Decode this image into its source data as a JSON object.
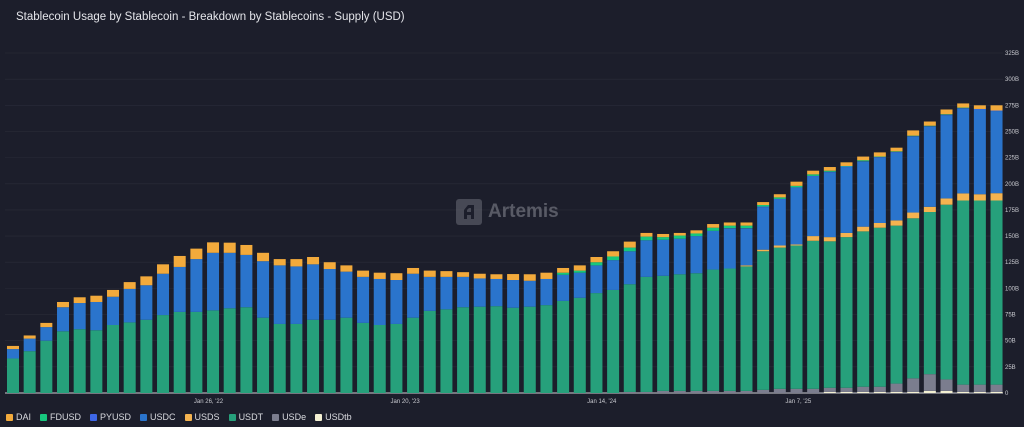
{
  "title": "Stablecoin Usage by Stablecoin - Breakdown by Stablecoins - Supply (USD)",
  "watermark": "Artemis",
  "chart_data": {
    "type": "bar",
    "stacked": true,
    "title": "Stablecoin Usage by Stablecoin - Breakdown by Stablecoins - Supply (USD)",
    "xlabel": "",
    "ylabel": "",
    "unit": "B USD",
    "ylim": [
      0,
      325
    ],
    "grid": true,
    "legend_position": "bottom-left",
    "y_ticks": [
      "0",
      "25B",
      "50B",
      "75B",
      "100B",
      "125B",
      "150B",
      "175B",
      "200B",
      "225B",
      "250B",
      "275B",
      "300B",
      "325B"
    ],
    "x_ticks": [
      "Jan 26, '22",
      "Jan 20, '23",
      "Jan 14, '24",
      "Jan 7, '25"
    ],
    "x_tick_dates": [
      "2022-01-26",
      "2023-01-20",
      "2024-01-14",
      "2025-01-07"
    ],
    "series": [
      {
        "name": "USDtb",
        "color": "#f3f0d2",
        "values": [
          0,
          0,
          0,
          0,
          0,
          0,
          0,
          0,
          0,
          0,
          0,
          0,
          0,
          0,
          0,
          0,
          0,
          0,
          0,
          0,
          0,
          0,
          0,
          0,
          0,
          0,
          0,
          0,
          0,
          0,
          0,
          0,
          0,
          0,
          0,
          0,
          0,
          0,
          0,
          0,
          0,
          0,
          0,
          0,
          0,
          0,
          0,
          0,
          0,
          1,
          1,
          1,
          1,
          1,
          1,
          2,
          2,
          1,
          1,
          1
        ]
      },
      {
        "name": "USDe",
        "color": "#7b7d8e",
        "values": [
          0,
          0,
          0,
          0,
          0,
          0,
          0,
          0,
          0,
          0,
          0,
          0,
          0,
          0,
          0,
          0,
          0,
          0,
          0,
          0,
          0,
          0,
          0,
          0,
          0,
          0,
          0,
          0,
          0,
          0,
          0,
          0,
          0,
          0,
          0,
          0,
          0,
          1,
          1,
          2,
          2,
          2,
          2,
          2,
          2,
          3,
          4,
          4,
          4,
          4,
          4,
          5,
          5,
          8,
          13,
          16,
          11,
          7,
          7,
          7
        ]
      },
      {
        "name": "USDT",
        "color": "#26a07b",
        "values": [
          33,
          40,
          50,
          59,
          61,
          60,
          65,
          67.5,
          70,
          74.5,
          77.5,
          77.5,
          79,
          81,
          82,
          72,
          66,
          66,
          70,
          70,
          72,
          67,
          65,
          66,
          72,
          78.5,
          80,
          82,
          82.5,
          83,
          81.5,
          82.5,
          84,
          88,
          91,
          95.5,
          98.5,
          103,
          110,
          110,
          111.5,
          112.5,
          116,
          117,
          119,
          132.5,
          135,
          137,
          141.5,
          140,
          144,
          148.5,
          152,
          151,
          153,
          155,
          167,
          176,
          176,
          176
        ]
      },
      {
        "name": "USDS",
        "color": "#f4b350",
        "values": [
          0,
          0,
          0,
          0,
          0,
          0,
          0,
          0,
          0,
          0,
          0,
          0,
          0,
          0,
          0,
          0,
          0,
          0,
          0,
          0,
          0,
          0,
          0,
          0,
          0,
          0,
          0,
          0,
          0,
          0,
          0,
          0,
          0,
          0,
          0,
          0,
          0,
          0,
          0,
          0,
          0,
          0,
          0,
          0,
          1,
          1.5,
          2,
          1,
          4.5,
          4,
          4,
          4.5,
          4.5,
          5,
          5.5,
          5,
          6,
          6.8,
          6,
          7
        ]
      },
      {
        "name": "USDC",
        "color": "#2a74cc",
        "values": [
          9,
          12,
          13,
          23,
          25,
          27,
          27,
          32,
          33,
          39.5,
          43,
          50.5,
          55,
          53,
          50,
          54,
          56,
          55,
          53,
          48.5,
          44,
          44,
          44,
          42,
          42,
          32.5,
          31,
          29,
          27,
          26,
          26.5,
          24.8,
          25,
          25,
          24,
          26.5,
          28.5,
          31.5,
          35,
          34.5,
          34,
          35.5,
          37,
          38,
          35,
          40.7,
          44,
          54,
          57,
          62,
          63,
          62,
          62.5,
          65,
          72.5,
          76.5,
          79.5,
          81,
          81,
          78.5
        ]
      },
      {
        "name": "PYUSD",
        "color": "#3d66e6",
        "values": [
          0,
          0,
          0,
          0,
          0,
          0,
          0,
          0,
          0,
          0,
          0,
          0,
          0,
          0,
          0,
          0,
          0,
          0,
          0,
          0,
          0,
          0,
          0,
          0,
          0,
          0,
          0,
          0,
          0,
          0,
          0,
          0,
          0,
          0,
          0,
          0,
          0,
          0,
          0,
          0,
          0,
          0,
          0,
          0.5,
          0.5,
          0.5,
          0.5,
          0.5,
          0.5,
          0.5,
          0.5,
          0.5,
          0.5,
          0.5,
          0.5,
          0.5,
          0.5,
          0.5,
          0.5,
          0.5
        ]
      },
      {
        "name": "FDUSD",
        "color": "#17c77e",
        "values": [
          0,
          0,
          0,
          0,
          0,
          0,
          0,
          0,
          0,
          0,
          0,
          0,
          0,
          0,
          0,
          0,
          0,
          0,
          0,
          0,
          0,
          0,
          0,
          0,
          0,
          0,
          0,
          0,
          0,
          0,
          0,
          0,
          0,
          2,
          2,
          3,
          3.5,
          3.5,
          3.5,
          2.5,
          3,
          2.5,
          3,
          2.5,
          2.5,
          1.5,
          1.5,
          1.5,
          1.5,
          1,
          0.5,
          1,
          0.5,
          0.5,
          0.5,
          0.5,
          0.5,
          0.5,
          0,
          0
        ]
      },
      {
        "name": "DAI",
        "color": "#f2aa3c",
        "values": [
          3,
          3,
          4,
          5,
          5.5,
          6,
          6.5,
          6.5,
          8.5,
          9,
          10.5,
          10,
          10,
          9.7,
          9.5,
          8,
          6,
          7,
          7,
          6.5,
          6,
          6,
          6,
          6.5,
          5.5,
          6,
          5.5,
          4.5,
          4.5,
          4.5,
          5.7,
          6.2,
          6,
          4.5,
          5,
          5,
          5,
          5.7,
          3.5,
          3,
          2.5,
          3,
          3.5,
          3,
          3,
          2.8,
          3,
          4,
          3.5,
          3.5,
          3.5,
          3.5,
          4,
          3.5,
          5,
          4,
          4.5,
          4,
          3.5,
          5
        ]
      }
    ],
    "legend": [
      "DAI",
      "FDUSD",
      "PYUSD",
      "USDC",
      "USDS",
      "USDT",
      "USDe",
      "USDtb"
    ]
  }
}
